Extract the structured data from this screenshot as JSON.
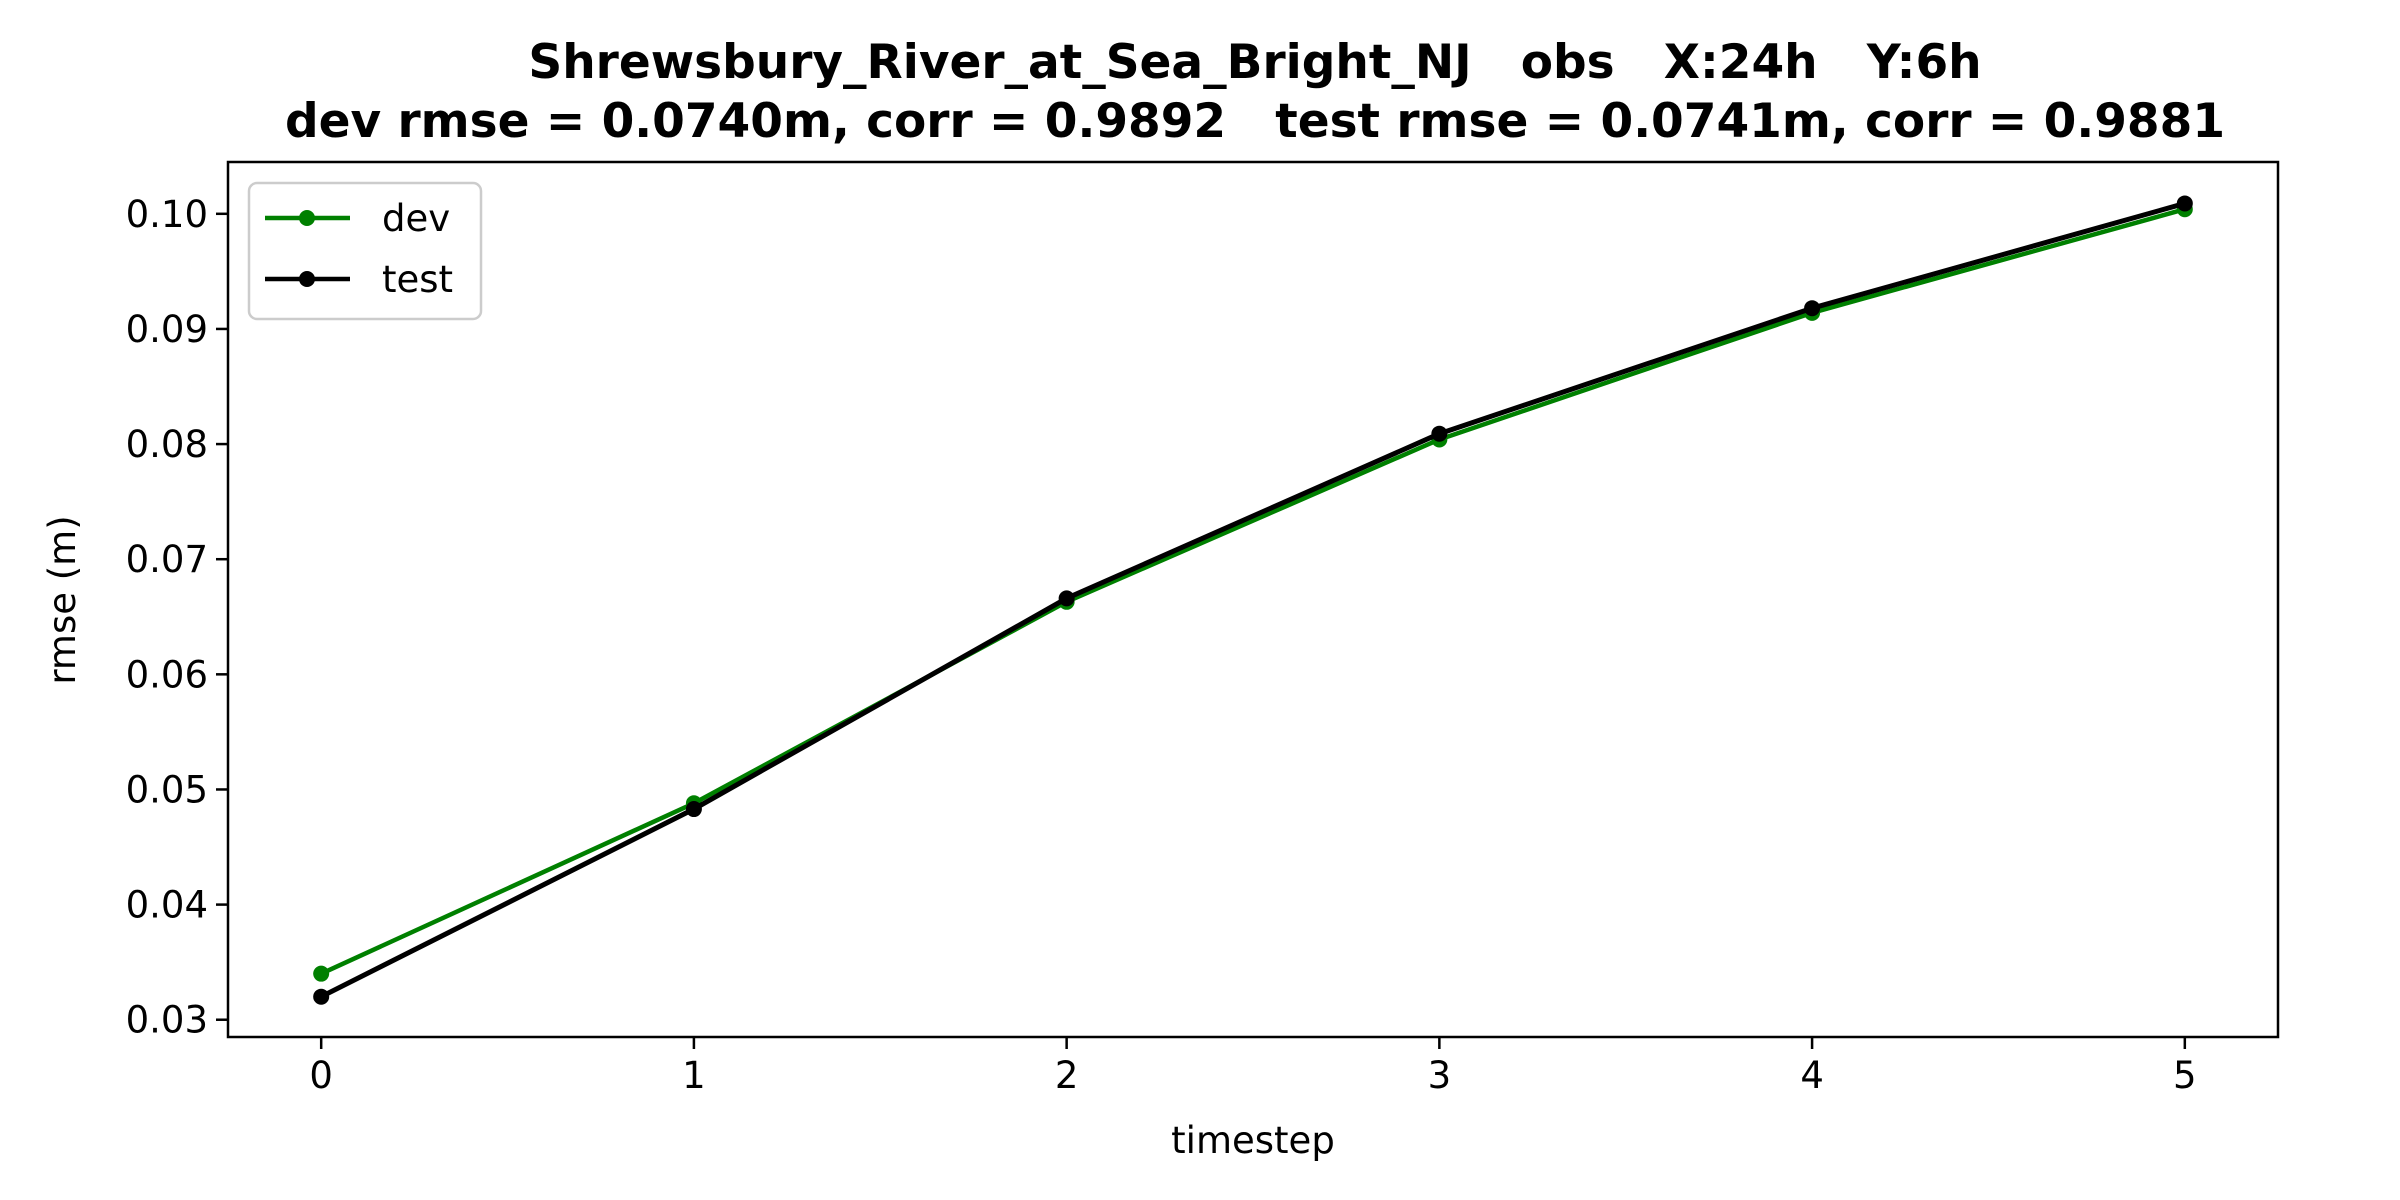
{
  "chart_data": {
    "type": "line",
    "title_line1": "Shrewsbury_River_at_Sea_Bright_NJ   obs   X:24h   Y:6h",
    "title_line2": "dev rmse = 0.0740m, corr = 0.9892   test rmse = 0.0741m, corr = 0.9881",
    "xlabel": "timestep",
    "ylabel": "rmse (m)",
    "x": [
      0,
      1,
      2,
      3,
      4,
      5
    ],
    "xlim": [
      -0.25,
      5.25
    ],
    "ylim": [
      0.0285,
      0.1045
    ],
    "xticks": [
      0,
      1,
      2,
      3,
      4,
      5
    ],
    "yticks": [
      0.03,
      0.04,
      0.05,
      0.06,
      0.07,
      0.08,
      0.09,
      0.1
    ],
    "ytick_labels": [
      "0.03",
      "0.04",
      "0.05",
      "0.06",
      "0.07",
      "0.08",
      "0.09",
      "0.10"
    ],
    "series": [
      {
        "name": "dev",
        "color": "#008000",
        "values": [
          0.034,
          0.0488,
          0.0663,
          0.0804,
          0.0914,
          0.1004
        ]
      },
      {
        "name": "test",
        "color": "#000000",
        "values": [
          0.032,
          0.0483,
          0.0666,
          0.0809,
          0.0918,
          0.1009
        ]
      }
    ],
    "legend": {
      "placement": "top-left",
      "entries": [
        "dev",
        "test"
      ]
    },
    "grid": false
  }
}
